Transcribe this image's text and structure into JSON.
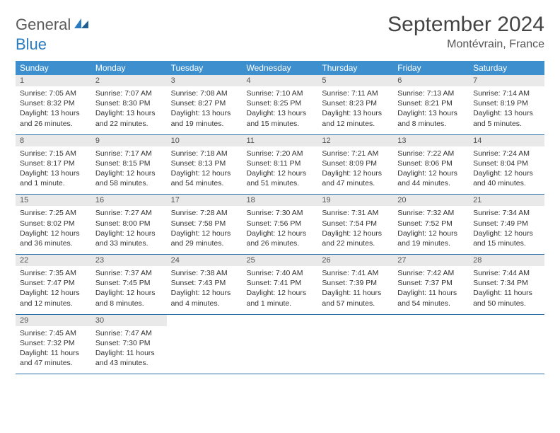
{
  "brand": {
    "word1": "General",
    "word2": "Blue",
    "accent_color": "#2a7bbf",
    "text_color": "#5a5a5a"
  },
  "title": "September 2024",
  "location": "Montévrain, France",
  "colors": {
    "header_bg": "#3d8fce",
    "header_text": "#ffffff",
    "daynum_bg": "#e9e9e9",
    "row_border": "#2a6fa8",
    "body_text": "#333333",
    "page_bg": "#ffffff"
  },
  "typography": {
    "body_fontsize": 10.5,
    "header_fontsize": 12,
    "title_fontsize": 30,
    "location_fontsize": 16
  },
  "day_headers": [
    "Sunday",
    "Monday",
    "Tuesday",
    "Wednesday",
    "Thursday",
    "Friday",
    "Saturday"
  ],
  "weeks": [
    [
      {
        "n": "1",
        "sunrise": "7:05 AM",
        "sunset": "8:32 PM",
        "daylight": "13 hours and 26 minutes."
      },
      {
        "n": "2",
        "sunrise": "7:07 AM",
        "sunset": "8:30 PM",
        "daylight": "13 hours and 22 minutes."
      },
      {
        "n": "3",
        "sunrise": "7:08 AM",
        "sunset": "8:27 PM",
        "daylight": "13 hours and 19 minutes."
      },
      {
        "n": "4",
        "sunrise": "7:10 AM",
        "sunset": "8:25 PM",
        "daylight": "13 hours and 15 minutes."
      },
      {
        "n": "5",
        "sunrise": "7:11 AM",
        "sunset": "8:23 PM",
        "daylight": "13 hours and 12 minutes."
      },
      {
        "n": "6",
        "sunrise": "7:13 AM",
        "sunset": "8:21 PM",
        "daylight": "13 hours and 8 minutes."
      },
      {
        "n": "7",
        "sunrise": "7:14 AM",
        "sunset": "8:19 PM",
        "daylight": "13 hours and 5 minutes."
      }
    ],
    [
      {
        "n": "8",
        "sunrise": "7:15 AM",
        "sunset": "8:17 PM",
        "daylight": "13 hours and 1 minute."
      },
      {
        "n": "9",
        "sunrise": "7:17 AM",
        "sunset": "8:15 PM",
        "daylight": "12 hours and 58 minutes."
      },
      {
        "n": "10",
        "sunrise": "7:18 AM",
        "sunset": "8:13 PM",
        "daylight": "12 hours and 54 minutes."
      },
      {
        "n": "11",
        "sunrise": "7:20 AM",
        "sunset": "8:11 PM",
        "daylight": "12 hours and 51 minutes."
      },
      {
        "n": "12",
        "sunrise": "7:21 AM",
        "sunset": "8:09 PM",
        "daylight": "12 hours and 47 minutes."
      },
      {
        "n": "13",
        "sunrise": "7:22 AM",
        "sunset": "8:06 PM",
        "daylight": "12 hours and 44 minutes."
      },
      {
        "n": "14",
        "sunrise": "7:24 AM",
        "sunset": "8:04 PM",
        "daylight": "12 hours and 40 minutes."
      }
    ],
    [
      {
        "n": "15",
        "sunrise": "7:25 AM",
        "sunset": "8:02 PM",
        "daylight": "12 hours and 36 minutes."
      },
      {
        "n": "16",
        "sunrise": "7:27 AM",
        "sunset": "8:00 PM",
        "daylight": "12 hours and 33 minutes."
      },
      {
        "n": "17",
        "sunrise": "7:28 AM",
        "sunset": "7:58 PM",
        "daylight": "12 hours and 29 minutes."
      },
      {
        "n": "18",
        "sunrise": "7:30 AM",
        "sunset": "7:56 PM",
        "daylight": "12 hours and 26 minutes."
      },
      {
        "n": "19",
        "sunrise": "7:31 AM",
        "sunset": "7:54 PM",
        "daylight": "12 hours and 22 minutes."
      },
      {
        "n": "20",
        "sunrise": "7:32 AM",
        "sunset": "7:52 PM",
        "daylight": "12 hours and 19 minutes."
      },
      {
        "n": "21",
        "sunrise": "7:34 AM",
        "sunset": "7:49 PM",
        "daylight": "12 hours and 15 minutes."
      }
    ],
    [
      {
        "n": "22",
        "sunrise": "7:35 AM",
        "sunset": "7:47 PM",
        "daylight": "12 hours and 12 minutes."
      },
      {
        "n": "23",
        "sunrise": "7:37 AM",
        "sunset": "7:45 PM",
        "daylight": "12 hours and 8 minutes."
      },
      {
        "n": "24",
        "sunrise": "7:38 AM",
        "sunset": "7:43 PM",
        "daylight": "12 hours and 4 minutes."
      },
      {
        "n": "25",
        "sunrise": "7:40 AM",
        "sunset": "7:41 PM",
        "daylight": "12 hours and 1 minute."
      },
      {
        "n": "26",
        "sunrise": "7:41 AM",
        "sunset": "7:39 PM",
        "daylight": "11 hours and 57 minutes."
      },
      {
        "n": "27",
        "sunrise": "7:42 AM",
        "sunset": "7:37 PM",
        "daylight": "11 hours and 54 minutes."
      },
      {
        "n": "28",
        "sunrise": "7:44 AM",
        "sunset": "7:34 PM",
        "daylight": "11 hours and 50 minutes."
      }
    ],
    [
      {
        "n": "29",
        "sunrise": "7:45 AM",
        "sunset": "7:32 PM",
        "daylight": "11 hours and 47 minutes."
      },
      {
        "n": "30",
        "sunrise": "7:47 AM",
        "sunset": "7:30 PM",
        "daylight": "11 hours and 43 minutes."
      },
      null,
      null,
      null,
      null,
      null
    ]
  ],
  "labels": {
    "sunrise": "Sunrise: ",
    "sunset": "Sunset: ",
    "daylight": "Daylight: "
  }
}
